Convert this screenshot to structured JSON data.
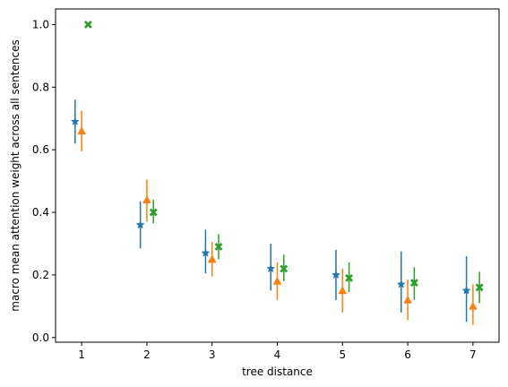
{
  "chart_data": {
    "type": "scatter",
    "title": "",
    "xlabel": "tree distance",
    "ylabel": "macro mean attention weight across all sentences",
    "xlim": [
      0.6,
      7.4
    ],
    "ylim": [
      -0.015,
      1.05
    ],
    "xticks": [
      1,
      2,
      3,
      4,
      5,
      6,
      7
    ],
    "yticks": [
      0.0,
      0.2,
      0.4,
      0.6,
      0.8,
      1.0
    ],
    "ytick_labels": [
      "0.0",
      "0.2",
      "0.4",
      "0.6",
      "0.8",
      "1.0"
    ],
    "grid": false,
    "legend": "none",
    "series": [
      {
        "marker": "star",
        "color": "#1f77b4",
        "x": [
          0.9,
          1.9,
          2.9,
          3.9,
          4.9,
          5.9,
          6.9
        ],
        "y": [
          0.69,
          0.36,
          0.27,
          0.22,
          0.2,
          0.17,
          0.15
        ],
        "err_low": [
          0.62,
          0.285,
          0.205,
          0.15,
          0.12,
          0.08,
          0.05
        ],
        "err_high": [
          0.76,
          0.435,
          0.345,
          0.3,
          0.28,
          0.275,
          0.26
        ]
      },
      {
        "marker": "triangle",
        "color": "#ff7f0e",
        "x": [
          1.0,
          2.0,
          3.0,
          4.0,
          5.0,
          6.0,
          7.0
        ],
        "y": [
          0.66,
          0.44,
          0.25,
          0.18,
          0.15,
          0.12,
          0.1
        ],
        "err_low": [
          0.595,
          0.37,
          0.195,
          0.12,
          0.08,
          0.055,
          0.04
        ],
        "err_high": [
          0.725,
          0.505,
          0.305,
          0.24,
          0.22,
          0.185,
          0.17
        ]
      },
      {
        "marker": "x",
        "color": "#2ca02c",
        "x": [
          1.1,
          2.1,
          3.1,
          4.1,
          5.1,
          6.1,
          7.1
        ],
        "y": [
          1.0,
          0.4,
          0.29,
          0.22,
          0.19,
          0.175,
          0.16
        ],
        "err_low": [
          1.0,
          0.365,
          0.25,
          0.18,
          0.145,
          0.12,
          0.11
        ],
        "err_high": [
          1.0,
          0.44,
          0.33,
          0.265,
          0.24,
          0.225,
          0.21
        ]
      }
    ]
  }
}
